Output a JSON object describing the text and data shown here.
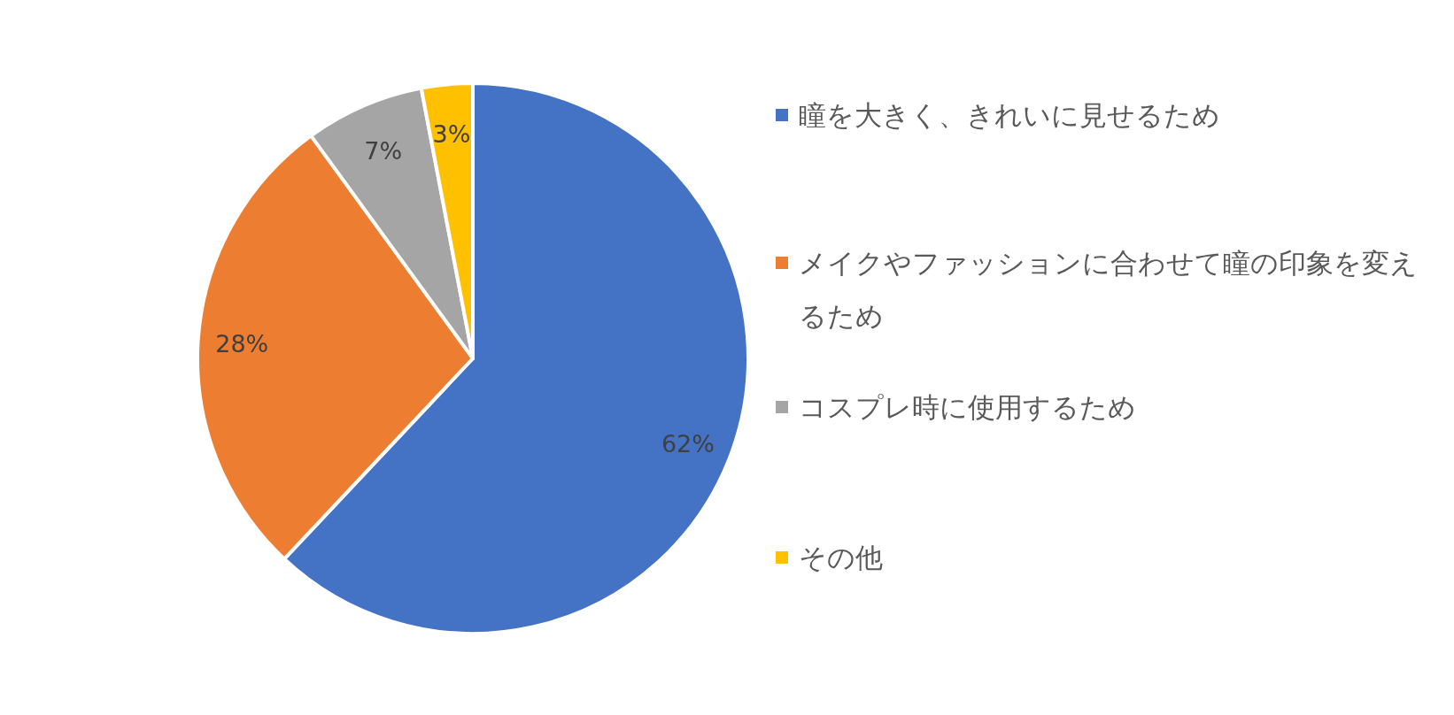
{
  "chart_data": {
    "type": "pie",
    "categories": [
      "瞳を大きく、きれいに見せるため",
      "メイクやファッションに合わせて瞳の印象を変えるため",
      "コスプレ時に使用するため",
      "その他"
    ],
    "values": [
      62,
      28,
      7,
      3
    ],
    "colors": [
      "#4472c4",
      "#ed7d31",
      "#a5a5a5",
      "#ffc000"
    ],
    "value_labels": [
      "62%",
      "28%",
      "7%",
      "3%"
    ],
    "legend": "right"
  }
}
